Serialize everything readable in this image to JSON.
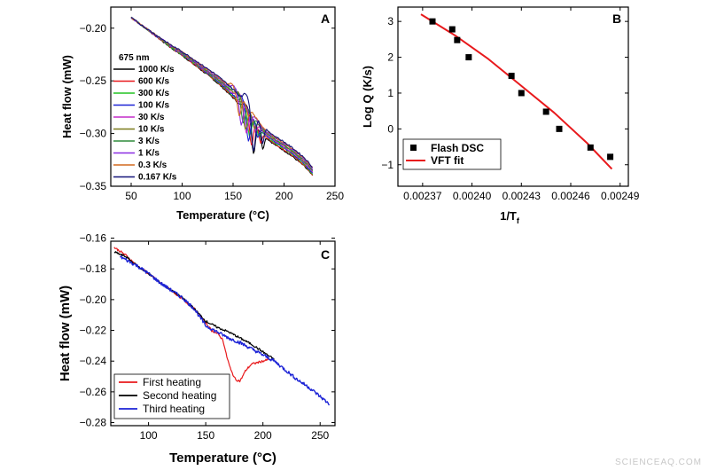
{
  "watermark": "SCIENCEAQ.COM",
  "chart_data": [
    {
      "panel": "A",
      "type": "line",
      "xlabel": "Temperature (°C)",
      "ylabel": "Heat flow (mW)",
      "xlim": [
        30,
        250
      ],
      "ylim": [
        -0.35,
        -0.18
      ],
      "xticks": [
        50,
        100,
        150,
        200,
        250
      ],
      "yticks": [
        -0.35,
        -0.3,
        -0.25,
        -0.2
      ],
      "ytick_labels": [
        "−0.35",
        "−0.30",
        "−0.25",
        "−0.20"
      ],
      "legend_title": "675 nm",
      "legend_position": "left",
      "base_curve": {
        "x": [
          50,
          60,
          70,
          80,
          90,
          100,
          110,
          120,
          130,
          140,
          150,
          160,
          170,
          180,
          190,
          200,
          210,
          220,
          228
        ],
        "y": [
          -0.19,
          -0.197,
          -0.204,
          -0.211,
          -0.218,
          -0.224,
          -0.231,
          -0.238,
          -0.245,
          -0.253,
          -0.262,
          -0.272,
          -0.285,
          -0.298,
          -0.306,
          -0.312,
          -0.319,
          -0.327,
          -0.336
        ]
      },
      "series": [
        {
          "name": "1000 K/s",
          "color": "#000000",
          "peak_x": 170,
          "peak_depth": 0.03
        },
        {
          "name": "600 K/s",
          "color": "#e8191c",
          "peak_x": 168,
          "peak_depth": 0.026
        },
        {
          "name": "300 K/s",
          "color": "#22c322",
          "peak_x": 166,
          "peak_depth": 0.02
        },
        {
          "name": "100 K/s",
          "color": "#1c23d6",
          "peak_x": 165,
          "peak_depth": 0.028
        },
        {
          "name": "30 K/s",
          "color": "#c42cc8",
          "peak_x": 163,
          "peak_depth": 0.024
        },
        {
          "name": "10 K/s",
          "color": "#7a7a1a",
          "peak_x": 162,
          "peak_depth": 0.022
        },
        {
          "name": "3 K/s",
          "color": "#2e8b3a",
          "peak_x": 160,
          "peak_depth": 0.02
        },
        {
          "name": "1 K/s",
          "color": "#8a2be2",
          "peak_x": 158,
          "peak_depth": 0.024
        },
        {
          "name": "0.3 K/s",
          "color": "#d2691e",
          "peak_x": 156,
          "peak_depth": 0.018
        },
        {
          "name": "0.167 K/s",
          "color": "#14147a",
          "peak_x": 170,
          "peak_depth": 0.036
        }
      ],
      "panel_label": "A"
    },
    {
      "panel": "B",
      "type": "scatter",
      "xlabel_main": "1/T",
      "xlabel_sub": "f",
      "ylabel": "Log Q (K/s)",
      "xlim": [
        0.002355,
        0.002495
      ],
      "ylim": [
        -1.6,
        3.4
      ],
      "xticks": [
        0.00237,
        0.0024,
        0.00243,
        0.00246,
        0.00249
      ],
      "xtick_labels": [
        "0.00237",
        "0.00240",
        "0.00243",
        "0.00246",
        "0.00249"
      ],
      "yticks": [
        -1,
        0,
        1,
        2,
        3
      ],
      "ytick_labels": [
        "−1",
        "0",
        "1",
        "2",
        "3"
      ],
      "legend_position": "bottom-left",
      "series": [
        {
          "name": "Flash DSC",
          "marker": "square",
          "color": "#000000",
          "x": [
            0.002376,
            0.002388,
            0.002391,
            0.002398,
            0.002424,
            0.00243,
            0.002445,
            0.002453,
            0.002472,
            0.002484
          ],
          "y": [
            3.0,
            2.78,
            2.48,
            2.0,
            1.48,
            1.0,
            0.48,
            0.0,
            -0.52,
            -0.78
          ]
        },
        {
          "name": "VFT fit",
          "type": "line",
          "color": "#e8191c",
          "x": [
            0.002369,
            0.00239,
            0.00241,
            0.00243,
            0.00245,
            0.00247,
            0.002485
          ],
          "y": [
            3.2,
            2.6,
            1.95,
            1.2,
            0.45,
            -0.4,
            -1.12
          ]
        }
      ],
      "panel_label": "B"
    },
    {
      "panel": "C",
      "type": "line",
      "xlabel": "Temperature (°C)",
      "ylabel": "Heat flow (mW)",
      "xlim": [
        67,
        263
      ],
      "ylim": [
        -0.282,
        -0.162
      ],
      "xticks": [
        100,
        150,
        200,
        250
      ],
      "yticks": [
        -0.28,
        -0.26,
        -0.24,
        -0.22,
        -0.2,
        -0.18,
        -0.16
      ],
      "ytick_labels": [
        "−0.28",
        "−0.26",
        "−0.24",
        "−0.22",
        "−0.20",
        "−0.18",
        "−0.16"
      ],
      "legend_position": "bottom-left",
      "series": [
        {
          "name": "First heating",
          "color": "#e8191c",
          "x": [
            70,
            80,
            90,
            100,
            110,
            120,
            130,
            140,
            150,
            155,
            160,
            165,
            168,
            172,
            176,
            180,
            185,
            190,
            195,
            200,
            205
          ],
          "y": [
            -0.166,
            -0.171,
            -0.178,
            -0.183,
            -0.189,
            -0.194,
            -0.2,
            -0.206,
            -0.215,
            -0.22,
            -0.222,
            -0.226,
            -0.236,
            -0.246,
            -0.252,
            -0.253,
            -0.246,
            -0.242,
            -0.241,
            -0.24,
            -0.239
          ]
        },
        {
          "name": "Second heating",
          "color": "#000000",
          "x": [
            70,
            80,
            90,
            100,
            110,
            120,
            130,
            140,
            150,
            160,
            170,
            180,
            190,
            200,
            210
          ],
          "y": [
            -0.169,
            -0.172,
            -0.178,
            -0.183,
            -0.189,
            -0.194,
            -0.199,
            -0.206,
            -0.214,
            -0.218,
            -0.221,
            -0.225,
            -0.229,
            -0.234,
            -0.239
          ]
        },
        {
          "name": "Third heating",
          "color": "#1c23d6",
          "x": [
            75,
            90,
            100,
            110,
            120,
            130,
            140,
            150,
            160,
            170,
            180,
            190,
            200,
            210,
            220,
            230,
            240,
            250,
            258
          ],
          "y": [
            -0.172,
            -0.178,
            -0.183,
            -0.189,
            -0.194,
            -0.199,
            -0.206,
            -0.217,
            -0.221,
            -0.225,
            -0.228,
            -0.232,
            -0.236,
            -0.24,
            -0.246,
            -0.252,
            -0.257,
            -0.263,
            -0.268
          ]
        }
      ],
      "panel_label": "C"
    }
  ]
}
